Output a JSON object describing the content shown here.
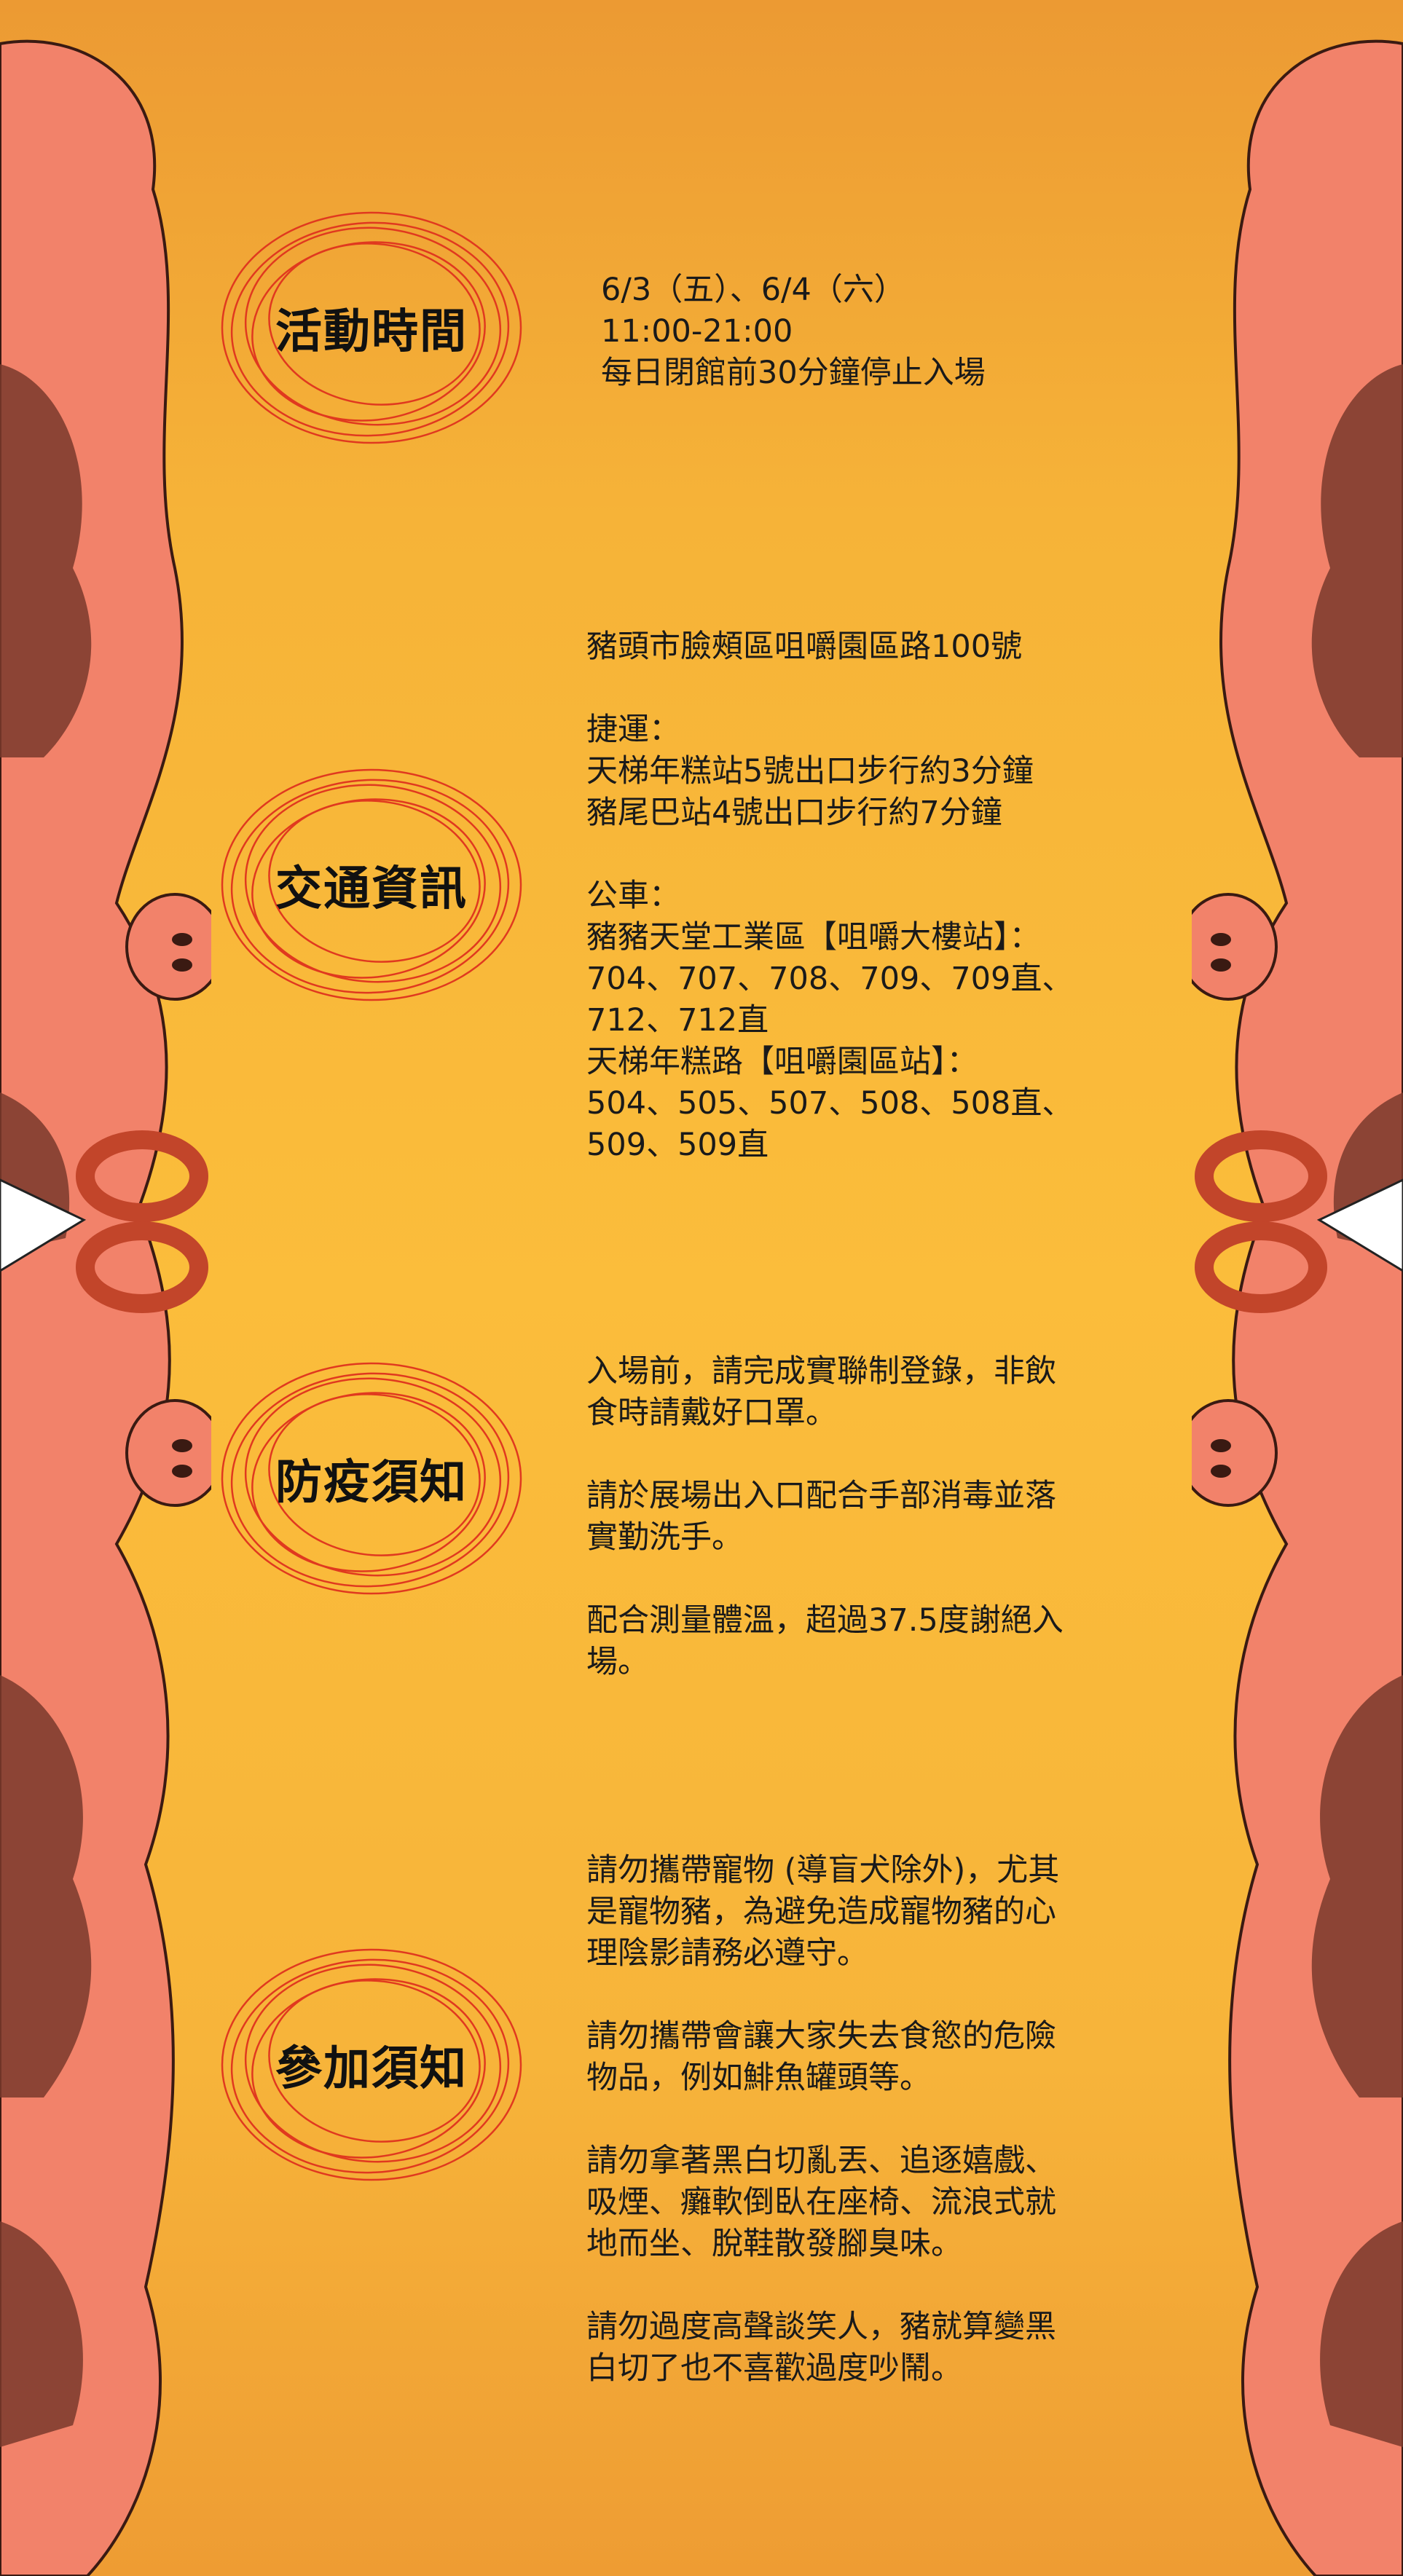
{
  "sections": {
    "time": {
      "title": "活動時間",
      "lines": [
        "6/3（五）、6/4（六）",
        "11:00-21:00",
        "每日閉館前30分鐘停止入場"
      ]
    },
    "transport": {
      "title": "交通資訊",
      "address": "豬頭市臉頰區咀嚼園區路100號",
      "mrt_label": "捷運：",
      "mrt_lines": [
        "天梯年糕站5號出口步行約3分鐘",
        "豬尾巴站4號出口步行約7分鐘"
      ],
      "bus_label": "公車：",
      "bus_lines": [
        "豬豬天堂工業區【咀嚼大樓站】：",
        "704、707、708、709、709直、",
        "712、712直",
        "天梯年糕路【咀嚼園區站】：",
        "504、505、507、508、508直、",
        "509、509直"
      ]
    },
    "epidemic": {
      "title": "防疫須知",
      "paras": [
        [
          "入場前，請完成實聯制登錄，非飲",
          "食時請戴好口罩。"
        ],
        [
          "請於展場出入口配合手部消毒並落",
          "實勤洗手。"
        ],
        [
          "配合測量體溫，超過37.5度謝絕入",
          "場。"
        ]
      ]
    },
    "notice": {
      "title": "參加須知",
      "paras": [
        [
          "請勿攜帶寵物 (導盲犬除外)，尤其",
          "是寵物豬，為避免造成寵物豬的心",
          "理陰影請務必遵守。"
        ],
        [
          "請勿攜帶會讓大家失去食慾的危險",
          "物品，例如鯡魚罐頭等。"
        ],
        [
          "請勿拿著黑白切亂丟、追逐嬉戲、",
          "吸煙、癱軟倒臥在座椅、流浪式就",
          "地而坐、脫鞋散發腳臭味。"
        ],
        [
          "請勿過度高聲談笑人，豬就算變黑",
          "白切了也不喜歡過度吵鬧。"
        ]
      ]
    }
  },
  "colors": {
    "background_top": "#ec9a33",
    "background_mid": "#fbbd3b",
    "ring": "#e0391f",
    "pig_pink": "#f2826a",
    "pig_shadow": "#6b2f25",
    "donut": "#c2452a"
  }
}
